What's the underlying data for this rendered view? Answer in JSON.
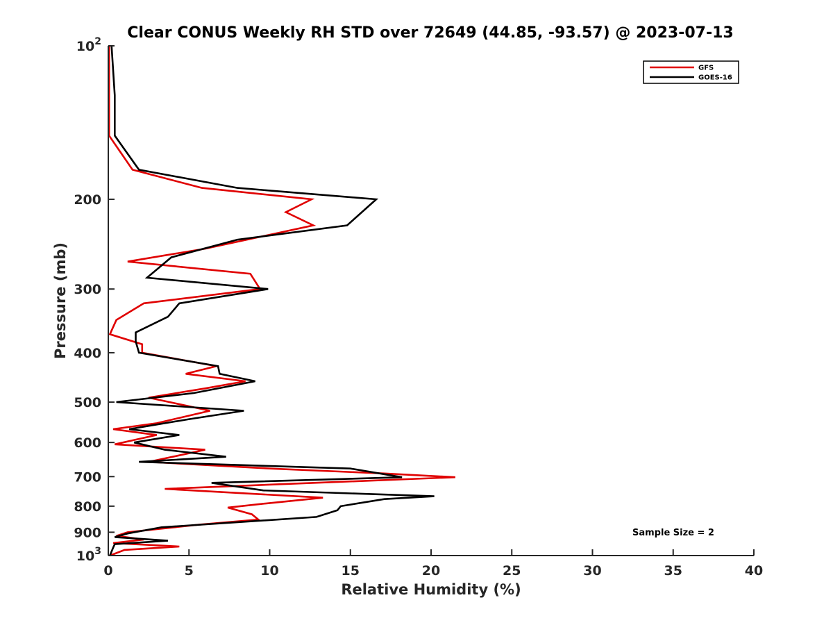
{
  "chart_data": {
    "type": "line",
    "title": "Clear CONUS Weekly RH STD over 72649 (44.85, -93.57) @ 2023-07-13",
    "xlabel": "Relative Humidity (%)",
    "ylabel": "Pressure (mb)",
    "xlim": [
      0,
      40
    ],
    "ylim": [
      100,
      1000
    ],
    "yscale": "log",
    "y_reversed": true,
    "grid": false,
    "legend_position": "top-right",
    "x_ticks": [
      "0",
      "5",
      "10",
      "15",
      "20",
      "25",
      "30",
      "35",
      "40"
    ],
    "y_ticks": [
      {
        "value": 100,
        "base": "10",
        "exp": "2"
      },
      {
        "value": 200,
        "label": "200"
      },
      {
        "value": 300,
        "label": "300"
      },
      {
        "value": 400,
        "label": "400"
      },
      {
        "value": 500,
        "label": "500"
      },
      {
        "value": 600,
        "label": "600"
      },
      {
        "value": 700,
        "label": "700"
      },
      {
        "value": 800,
        "label": "800"
      },
      {
        "value": 900,
        "label": "900"
      },
      {
        "value": 1000,
        "base": "10",
        "exp": "3"
      }
    ],
    "annotation": "Sample Size = 2",
    "series": [
      {
        "name": "GFS",
        "color": "#e00000",
        "points": [
          [
            0.05,
            100
          ],
          [
            0.05,
            125
          ],
          [
            0.05,
            150
          ],
          [
            1.5,
            175
          ],
          [
            5.8,
            190
          ],
          [
            12.6,
            200
          ],
          [
            11.0,
            212
          ],
          [
            12.7,
            225
          ],
          [
            6.0,
            250
          ],
          [
            1.2,
            265
          ],
          [
            8.8,
            280
          ],
          [
            9.4,
            300
          ],
          [
            2.2,
            320
          ],
          [
            0.5,
            345
          ],
          [
            0.1,
            368
          ],
          [
            2.1,
            385
          ],
          [
            2.1,
            400
          ],
          [
            6.7,
            425
          ],
          [
            4.8,
            440
          ],
          [
            8.5,
            455
          ],
          [
            6.0,
            470
          ],
          [
            2.5,
            490
          ],
          [
            6.3,
            520
          ],
          [
            3.0,
            550
          ],
          [
            0.3,
            565
          ],
          [
            3.0,
            580
          ],
          [
            0.4,
            605
          ],
          [
            6.0,
            620
          ],
          [
            4.0,
            640
          ],
          [
            2.5,
            655
          ],
          [
            10.0,
            675
          ],
          [
            17.0,
            690
          ],
          [
            21.5,
            702
          ],
          [
            3.5,
            740
          ],
          [
            13.3,
            770
          ],
          [
            9.8,
            790
          ],
          [
            7.4,
            805
          ],
          [
            8.9,
            830
          ],
          [
            9.3,
            850
          ],
          [
            5.6,
            870
          ],
          [
            1.2,
            900
          ],
          [
            0.5,
            915
          ],
          [
            2.2,
            930
          ],
          [
            0.3,
            945
          ],
          [
            4.4,
            960
          ],
          [
            1.0,
            975
          ],
          [
            0.1,
            1000
          ]
        ]
      },
      {
        "name": "GOES-16",
        "color": "#000000",
        "points": [
          [
            0.2,
            100
          ],
          [
            0.4,
            125
          ],
          [
            0.4,
            150
          ],
          [
            1.9,
            175
          ],
          [
            8.0,
            190
          ],
          [
            16.6,
            200
          ],
          [
            14.8,
            225
          ],
          [
            8.0,
            240
          ],
          [
            3.9,
            260
          ],
          [
            2.4,
            285
          ],
          [
            9.9,
            300
          ],
          [
            4.4,
            320
          ],
          [
            3.7,
            340
          ],
          [
            1.7,
            365
          ],
          [
            1.7,
            380
          ],
          [
            1.9,
            400
          ],
          [
            6.8,
            425
          ],
          [
            6.9,
            440
          ],
          [
            9.1,
            455
          ],
          [
            5.3,
            480
          ],
          [
            0.5,
            500
          ],
          [
            8.4,
            520
          ],
          [
            5.0,
            540
          ],
          [
            1.3,
            565
          ],
          [
            4.4,
            580
          ],
          [
            1.6,
            600
          ],
          [
            3.5,
            620
          ],
          [
            7.3,
            640
          ],
          [
            1.9,
            655
          ],
          [
            15.0,
            675
          ],
          [
            18.2,
            702
          ],
          [
            6.4,
            720
          ],
          [
            9.6,
            745
          ],
          [
            20.2,
            765
          ],
          [
            17.1,
            775
          ],
          [
            14.4,
            800
          ],
          [
            14.2,
            815
          ],
          [
            12.9,
            840
          ],
          [
            3.3,
            880
          ],
          [
            1.2,
            905
          ],
          [
            0.4,
            920
          ],
          [
            3.7,
            935
          ],
          [
            0.4,
            950
          ],
          [
            0.3,
            965
          ],
          [
            0.1,
            1000
          ]
        ]
      }
    ]
  }
}
